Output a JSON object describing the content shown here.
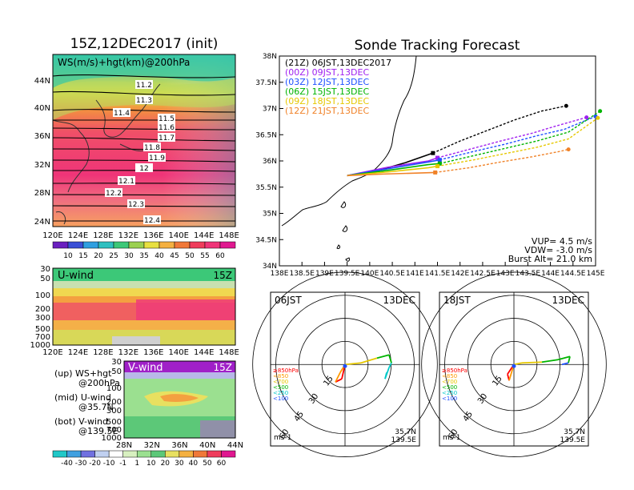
{
  "left": {
    "title": "15Z,12DEC2017 (init)",
    "map_label": "WS(m/s)+hgt(km)@200hPa",
    "map_lat_ticks": [
      "44N",
      "40N",
      "36N",
      "32N",
      "28N",
      "24N"
    ],
    "lon_ticks": [
      "120E",
      "124E",
      "128E",
      "132E",
      "136E",
      "140E",
      "144E",
      "148E"
    ],
    "height_labels": [
      "11.2",
      "11.3",
      "11.4",
      "11.5",
      "11.6",
      "11.7",
      "11.8",
      "11.9",
      "12",
      "12.1",
      "12.2",
      "12.3",
      "12.4"
    ],
    "ws_colorbar": [
      "10",
      "15",
      "20",
      "25",
      "30",
      "35",
      "40",
      "45",
      "50",
      "55",
      "60"
    ],
    "uwind_label": "U-wind",
    "uwind_time": "15Z",
    "p_ticks": [
      "30",
      "50",
      "100",
      "200",
      "300",
      "500",
      "700",
      "1000"
    ],
    "vwind_label": "V-wind",
    "vwind_time": "15Z",
    "vwind_lat_ticks": [
      "28N",
      "32N",
      "36N",
      "40N",
      "44N"
    ],
    "legend": {
      "up": "(up) WS+hgt",
      "up2": "@200hPa",
      "mid": "(mid) U-wind",
      "mid2": "@35.7N",
      "bot": "(bot) V-wind",
      "bot2": "@139.5E"
    },
    "wind_colorbar": [
      "-40",
      "-30",
      "-20",
      "-10",
      "-1",
      "1",
      "10",
      "20",
      "30",
      "40",
      "50",
      "60"
    ]
  },
  "right": {
    "title": "Sonde Tracking Forecast",
    "lat_ticks": [
      "38N",
      "37.5N",
      "37N",
      "36.5N",
      "36N",
      "35.5N",
      "35N",
      "34.5N",
      "34N"
    ],
    "lon_ticks": [
      "138E",
      "138.5E",
      "139E",
      "139.5E",
      "140E",
      "140.5E",
      "141E",
      "141.5E",
      "142E",
      "142.5E",
      "143E",
      "143.5E",
      "144E",
      "144.5E",
      "145E"
    ],
    "tracks": [
      {
        "label": "(21Z)  06JST,13DEC2017",
        "color": "#000000"
      },
      {
        "label": "(00Z)  09JST,13DEC",
        "color": "#a020f0"
      },
      {
        "label": "(03Z)  12JST,13DEC",
        "color": "#1e50ff"
      },
      {
        "label": "(06Z)  15JST,13DEC",
        "color": "#00b400"
      },
      {
        "label": "(09Z)  18JST,13DEC",
        "color": "#e6c800"
      },
      {
        "label": "(12Z)  21JST,13DEC",
        "color": "#f08228"
      }
    ],
    "params": {
      "vup": "VUP=  4.5  m/s",
      "vdw": "VDW= -3.0  m/s",
      "burst": "Burst Alt= 21.0  km"
    }
  },
  "hodographs": [
    {
      "time": "06JST",
      "date": "13DEC"
    },
    {
      "time": "18JST",
      "date": "13DEC"
    }
  ],
  "hodo_common": {
    "ring_labels": [
      "15",
      "30",
      "45",
      "60"
    ],
    "level_legend": [
      {
        "text": "≥850hPa",
        "color": "#ff0000"
      },
      {
        "text": "<850",
        "color": "#ff9900"
      },
      {
        "text": "<700",
        "color": "#e6c800"
      },
      {
        "text": "<500",
        "color": "#00b400"
      },
      {
        "text": "<250",
        "color": "#00c8c8"
      },
      {
        "text": "<100",
        "color": "#1e50ff"
      }
    ],
    "units": "ms-1",
    "loc_lat": "35.7N",
    "loc_lon": "139.5E"
  },
  "chart_data": [
    {
      "type": "heatmap",
      "title": "15Z,12DEC2017 (init)",
      "label": "WS(m/s)+hgt(km)@200hPa",
      "x": [
        "120E",
        "124E",
        "128E",
        "132E",
        "136E",
        "140E",
        "144E",
        "148E"
      ],
      "y": [
        "24N",
        "28N",
        "32N",
        "36N",
        "40N",
        "44N"
      ],
      "colorbar": [
        10,
        15,
        20,
        25,
        30,
        35,
        40,
        45,
        50,
        55,
        60
      ],
      "contours_km": [
        11.2,
        11.3,
        11.4,
        11.5,
        11.6,
        11.7,
        11.8,
        11.9,
        12,
        12.1,
        12.2,
        12.3,
        12.4
      ]
    },
    {
      "type": "line",
      "title": "Sonde Tracking Forecast",
      "xlim": [
        138,
        145
      ],
      "ylim": [
        34,
        38
      ],
      "series": [
        {
          "name": "(21Z)  06JST,13DEC2017",
          "x": [
            139.5,
            140.2,
            140.8,
            141.4,
            142.0,
            142.6,
            143.2,
            143.8,
            144.35
          ],
          "y": [
            35.72,
            35.82,
            35.97,
            36.15,
            36.38,
            36.58,
            36.78,
            36.95,
            37.05
          ]
        },
        {
          "name": "(00Z)  09JST,13DEC",
          "x": [
            139.5,
            140.4,
            141.3,
            141.5,
            142.2,
            142.9,
            143.6,
            144.1,
            144.8
          ],
          "y": [
            35.72,
            35.88,
            36.0,
            36.06,
            36.22,
            36.38,
            36.53,
            36.66,
            36.83
          ]
        },
        {
          "name": "(03Z)  12JST,13DEC",
          "x": [
            139.5,
            140.4,
            141.3,
            141.55,
            142.3,
            143.0,
            143.7,
            144.3,
            145.0
          ],
          "y": [
            35.72,
            35.85,
            35.98,
            36.02,
            36.18,
            36.32,
            36.48,
            36.6,
            36.85
          ]
        },
        {
          "name": "(06Z)  15JST,13DEC",
          "x": [
            139.5,
            140.4,
            141.3,
            141.55,
            142.3,
            143.0,
            143.7,
            144.4,
            145.1
          ],
          "y": [
            35.72,
            35.82,
            35.93,
            35.95,
            36.1,
            36.24,
            36.38,
            36.55,
            36.95
          ]
        },
        {
          "name": "(09Z)  18JST,13DEC",
          "x": [
            139.5,
            140.4,
            141.3,
            141.5,
            142.3,
            143.0,
            143.7,
            144.4,
            145.05
          ],
          "y": [
            35.72,
            35.79,
            35.87,
            35.9,
            36.02,
            36.14,
            36.26,
            36.42,
            36.82
          ]
        },
        {
          "name": "(12Z)  21JST,13DEC",
          "x": [
            139.5,
            140.3,
            141.1,
            141.45,
            142.2,
            142.9,
            143.6,
            144.2,
            144.4
          ],
          "y": [
            35.72,
            35.75,
            35.77,
            35.78,
            35.87,
            35.98,
            36.08,
            36.18,
            36.22
          ]
        }
      ]
    },
    {
      "type": "heatmap",
      "title": "U-wind 15Z",
      "x": [
        "120E",
        "124E",
        "128E",
        "132E",
        "136E",
        "140E",
        "144E",
        "148E"
      ],
      "y_pressure_hPa": [
        30,
        50,
        100,
        200,
        300,
        500,
        700,
        1000
      ]
    },
    {
      "type": "heatmap",
      "title": "V-wind 15Z",
      "x": [
        "28N",
        "32N",
        "36N",
        "40N",
        "44N"
      ],
      "y_pressure_hPa": [
        30,
        50,
        100,
        200,
        300,
        500,
        700,
        1000
      ],
      "colorbar": [
        -40,
        -30,
        -20,
        -10,
        -1,
        1,
        10,
        20,
        30,
        40,
        50,
        60
      ]
    }
  ]
}
